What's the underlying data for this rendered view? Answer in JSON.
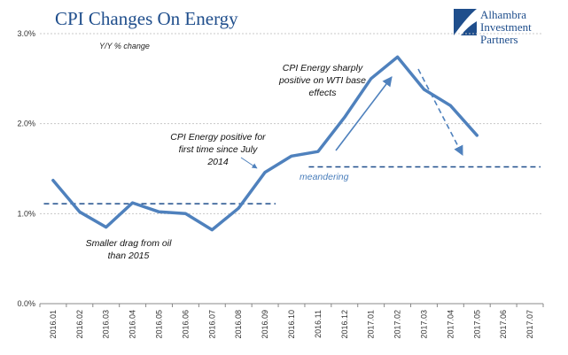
{
  "chart_data": {
    "type": "line",
    "title": "CPI Changes On Energy",
    "subtitle": "Y/Y % change",
    "categories": [
      "2016.01",
      "2016.02",
      "2016.03",
      "2016.04",
      "2016.05",
      "2016.06",
      "2016.07",
      "2016.08",
      "2016.09",
      "2016.10",
      "2016.11",
      "2016.12",
      "2017.01",
      "2017.02",
      "2017.03",
      "2017.04",
      "2017.05",
      "2017.06",
      "2017.07"
    ],
    "series": [
      {
        "values": [
          1.37,
          1.02,
          0.85,
          1.12,
          1.02,
          1.0,
          0.82,
          1.06,
          1.46,
          1.64,
          1.69,
          2.07,
          2.5,
          2.74,
          2.38,
          2.2,
          1.87,
          null,
          null
        ]
      }
    ],
    "yticks": [
      "0.0%",
      "1.0%",
      "2.0%",
      "3.0%"
    ],
    "ylim": [
      0,
      3
    ],
    "grid": true,
    "colors": {
      "line": "#4f81bd",
      "dash": "#1f4e8c",
      "title": "#1f4e8c",
      "annotation_blue": "#4a7ebb"
    },
    "reference_lines": [
      {
        "value": 1.11,
        "from": "2016.01",
        "to": "2016.09"
      },
      {
        "value": 1.52,
        "from": "2016.11",
        "to": "2017.07"
      }
    ],
    "annotations": [
      {
        "lines": [
          "Smaller drag from oil",
          "than 2015"
        ]
      },
      {
        "lines": [
          "CPI Energy positive for",
          "first time since July",
          "2014"
        ]
      },
      {
        "lines": [
          "CPI Energy sharply",
          "positive on WTI base",
          "effects"
        ]
      },
      {
        "lines": [
          "meandering"
        ]
      }
    ]
  },
  "logo": {
    "lines": [
      "Alhambra",
      "Investment",
      "Partners"
    ],
    "icon": "alhambra-swoosh-logo"
  }
}
